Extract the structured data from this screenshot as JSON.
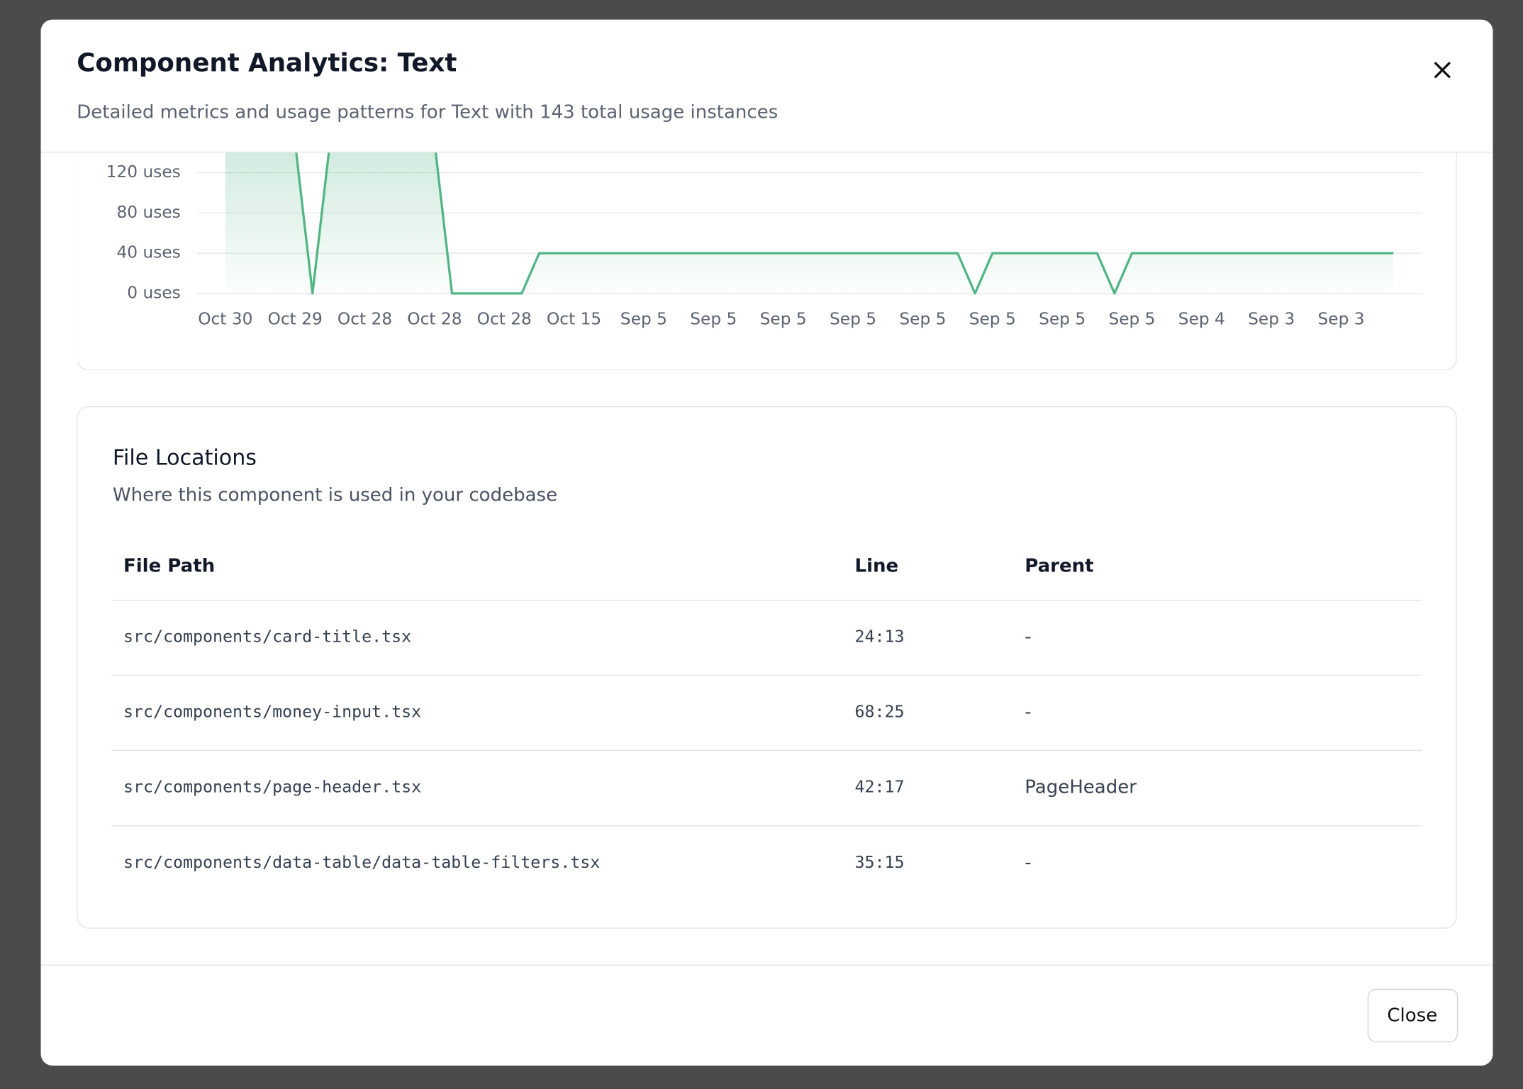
{
  "header": {
    "title": "Component Analytics: Text",
    "description": "Detailed metrics and usage patterns for Text with 143 total usage instances"
  },
  "chart_data": {
    "type": "line",
    "categories": [
      "Oct 30",
      null,
      null,
      null,
      "Oct 29",
      null,
      null,
      null,
      "Oct 28",
      null,
      null,
      null,
      "Oct 28",
      null,
      null,
      null,
      "Oct 28",
      null,
      null,
      null,
      "Oct 15",
      null,
      null,
      null,
      "Sep 5",
      null,
      null,
      null,
      "Sep 5",
      null,
      null,
      null,
      "Sep 5",
      null,
      null,
      null,
      "Sep 5",
      null,
      null,
      null,
      "Sep 5",
      null,
      null,
      null,
      "Sep 5",
      null,
      null,
      null,
      "Sep 5",
      null,
      null,
      null,
      "Sep 5",
      null,
      null,
      null,
      "Sep 4",
      null,
      null,
      null,
      "Sep 3",
      null,
      null,
      null,
      "Sep 3",
      null,
      null,
      null
    ],
    "values": [
      150,
      150,
      150,
      150,
      150,
      0,
      150,
      150,
      150,
      150,
      150,
      150,
      150,
      0,
      0,
      0,
      0,
      0,
      40,
      40,
      40,
      40,
      40,
      40,
      40,
      40,
      40,
      40,
      40,
      40,
      40,
      40,
      40,
      40,
      40,
      40,
      40,
      40,
      40,
      40,
      40,
      40,
      40,
      0,
      40,
      40,
      40,
      40,
      40,
      40,
      40,
      0,
      40,
      40,
      40,
      40,
      40,
      40,
      40,
      40,
      40,
      40,
      40,
      40,
      40,
      40,
      40,
      40
    ],
    "color": "#52b586",
    "ylim": [
      0,
      140
    ],
    "yticks": [
      {
        "value": 0,
        "label": "0 uses"
      },
      {
        "value": 40,
        "label": "40 uses"
      },
      {
        "value": 80,
        "label": "80 uses"
      },
      {
        "value": 120,
        "label": "120 uses"
      }
    ],
    "grid": true
  },
  "file_locations": {
    "title": "File Locations",
    "subtitle": "Where this component is used in your codebase",
    "columns": [
      "File Path",
      "Line",
      "Parent"
    ],
    "rows": [
      [
        "src/components/card-title.tsx",
        "24:13",
        "-"
      ],
      [
        "src/components/money-input.tsx",
        "68:25",
        "-"
      ],
      [
        "src/components/page-header.tsx",
        "42:17",
        "PageHeader"
      ],
      [
        "src/components/data-table/data-table-filters.tsx",
        "35:15",
        "-"
      ]
    ]
  },
  "footer": {
    "close": "Close"
  }
}
